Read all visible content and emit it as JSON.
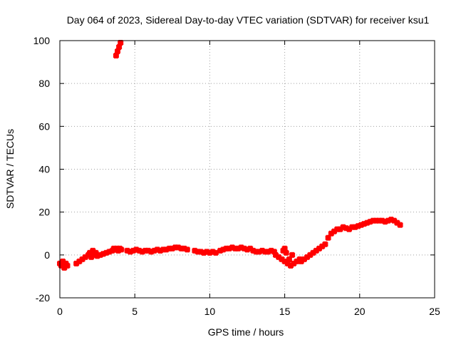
{
  "chart_data": {
    "type": "scatter",
    "title": "Day 064 of 2023, Sidereal Day-to-day VTEC variation (SDTVAR) for receiver ksu1",
    "xlabel": "GPS time / hours",
    "ylabel": "SDTVAR / TECUs",
    "xlim": [
      0,
      25
    ],
    "ylim": [
      -20,
      100
    ],
    "xticks": [
      0,
      5,
      10,
      15,
      20,
      25
    ],
    "yticks": [
      -20,
      0,
      20,
      40,
      60,
      80,
      100
    ],
    "grid": true,
    "marker": "plus",
    "series": [
      {
        "name": "SDTVAR",
        "color": "#ff0000",
        "x": [
          0.0,
          0.1,
          0.2,
          0.3,
          0.4,
          0.5,
          1.1,
          1.3,
          1.5,
          1.7,
          1.9,
          2.0,
          2.1,
          2.2,
          2.3,
          2.4,
          2.5,
          2.7,
          2.9,
          3.1,
          3.3,
          3.5,
          3.6,
          3.7,
          3.8,
          3.9,
          4.0,
          4.1,
          3.75,
          3.85,
          3.95,
          4.05,
          4.5,
          4.7,
          4.9,
          5.1,
          5.3,
          5.5,
          5.7,
          5.9,
          6.1,
          6.3,
          6.5,
          6.7,
          6.9,
          7.1,
          7.3,
          7.5,
          7.7,
          7.9,
          8.1,
          8.3,
          8.5,
          9.0,
          9.2,
          9.4,
          9.6,
          9.8,
          10.0,
          10.2,
          10.4,
          10.7,
          10.9,
          11.1,
          11.3,
          11.5,
          11.7,
          11.9,
          12.1,
          12.3,
          12.5,
          12.7,
          12.9,
          13.1,
          13.3,
          13.5,
          13.7,
          13.9,
          14.1,
          14.3,
          14.4,
          14.6,
          14.8,
          15.0,
          15.2,
          15.4,
          15.6,
          15.8,
          16.0,
          14.9,
          15.0,
          15.1,
          15.3,
          15.5,
          16.1,
          16.3,
          16.5,
          16.7,
          16.9,
          17.1,
          17.3,
          17.5,
          17.7,
          17.9,
          18.1,
          18.3,
          18.5,
          18.7,
          18.9,
          19.1,
          19.3,
          19.5,
          19.7,
          19.9,
          20.1,
          20.3,
          20.5,
          20.7,
          20.9,
          21.1,
          21.3,
          21.5,
          21.7,
          21.9,
          22.1,
          22.3,
          22.5,
          22.7
        ],
        "y": [
          -4,
          -5,
          -3,
          -6,
          -4,
          -5,
          -4,
          -3,
          -2,
          -1,
          0,
          1,
          -1,
          2,
          0,
          1,
          -0.5,
          0,
          0.5,
          1,
          1.5,
          2,
          3,
          2.5,
          3,
          2,
          3,
          2.5,
          93,
          95,
          97,
          99,
          2,
          1.5,
          2,
          2.5,
          2,
          1.5,
          2,
          2,
          1.5,
          2,
          2.5,
          2,
          2.5,
          2.5,
          3,
          3,
          3.5,
          3.5,
          3,
          3,
          2.5,
          2,
          1.5,
          1.5,
          1,
          1.5,
          1,
          1.5,
          1,
          2,
          2.5,
          3,
          3,
          3.5,
          3,
          3,
          3.5,
          3,
          2.5,
          3,
          2,
          1.5,
          1.5,
          2,
          1.5,
          1.5,
          2,
          1.5,
          0,
          -1,
          -2,
          -3,
          -4,
          -5,
          -4,
          -3,
          -2,
          2,
          3,
          1,
          -2,
          0,
          -3,
          -2,
          -1,
          0,
          1,
          2,
          3,
          4,
          5,
          8,
          10,
          11,
          12,
          12,
          13,
          12.5,
          12,
          13,
          13,
          13.5,
          14,
          14.5,
          15,
          15.5,
          16,
          16,
          16,
          16,
          15.5,
          16,
          16.5,
          16,
          15,
          14
        ]
      }
    ]
  }
}
